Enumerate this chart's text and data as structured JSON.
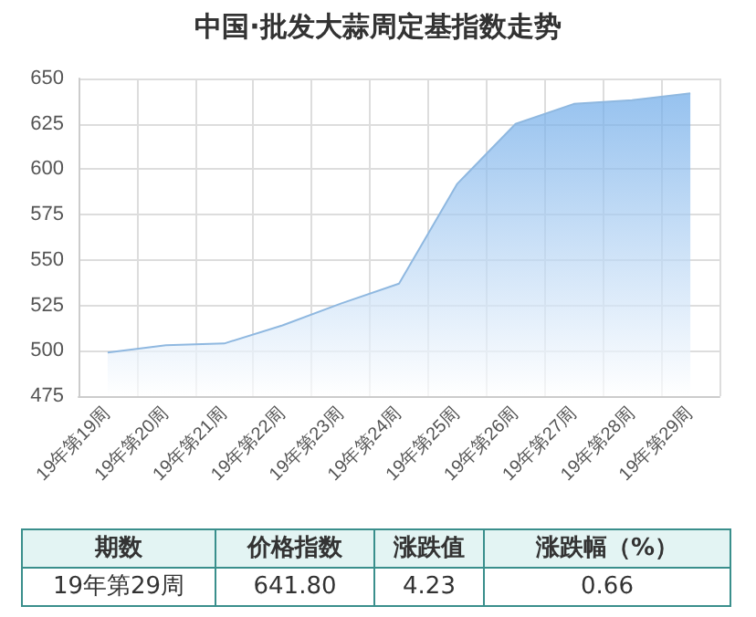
{
  "chart_data": {
    "type": "area",
    "title": "中国·批发大蒜周定基指数走势",
    "categories": [
      "19年第19周",
      "19年第20周",
      "19年第21周",
      "19年第22周",
      "19年第23周",
      "19年第24周",
      "19年第25周",
      "19年第26周",
      "19年第27周",
      "19年第28周",
      "19年第29周"
    ],
    "series": [
      {
        "color": "#6aa8e8",
        "values": [
          499,
          503,
          504,
          514,
          526,
          537,
          592,
          625,
          636,
          638,
          641.8
        ]
      }
    ],
    "ylim": [
      475,
      650
    ],
    "yticks": [
      475,
      500,
      525,
      550,
      575,
      600,
      625,
      650
    ],
    "grid": true,
    "marker": "none",
    "line_style": "solid",
    "annotations": [
      "期数",
      "价格指数",
      "涨跌值",
      "涨跌幅（%）",
      "19年第29周",
      "641.80",
      "4.23",
      "0.66"
    ]
  }
}
